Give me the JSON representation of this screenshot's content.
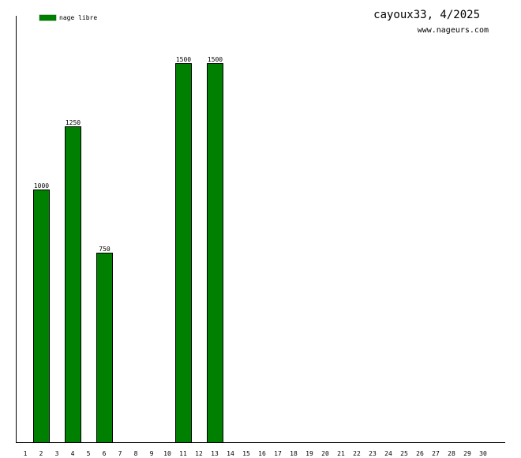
{
  "header": {
    "title": "cayoux33, 4/2025",
    "website": "www.nageurs.com"
  },
  "chart_data": {
    "type": "bar",
    "legend": {
      "placement": "top-left",
      "entries": [
        {
          "name": "nage libre",
          "color": "#008000"
        }
      ]
    },
    "categories": [
      "1",
      "2",
      "3",
      "4",
      "5",
      "6",
      "7",
      "8",
      "9",
      "10",
      "11",
      "12",
      "13",
      "14",
      "15",
      "16",
      "17",
      "18",
      "19",
      "20",
      "21",
      "22",
      "23",
      "24",
      "25",
      "26",
      "27",
      "28",
      "29",
      "30"
    ],
    "series": [
      {
        "name": "nage libre",
        "color": "#008000",
        "values": [
          null,
          1000,
          null,
          1250,
          null,
          750,
          null,
          null,
          null,
          null,
          1500,
          null,
          1500,
          null,
          null,
          null,
          null,
          null,
          null,
          null,
          null,
          null,
          null,
          null,
          null,
          null,
          null,
          null,
          null,
          null
        ]
      }
    ],
    "data_labels": [
      "",
      "1000",
      "",
      "1250",
      "",
      "750",
      "",
      "",
      "",
      "",
      "1500",
      "",
      "1500",
      "",
      "",
      "",
      "",
      "",
      "",
      "",
      "",
      "",
      "",
      "",
      "",
      "",
      "",
      "",
      "",
      ""
    ],
    "ylim": [
      0,
      1687.5
    ],
    "grid": false,
    "xlabel": "",
    "ylabel": ""
  }
}
